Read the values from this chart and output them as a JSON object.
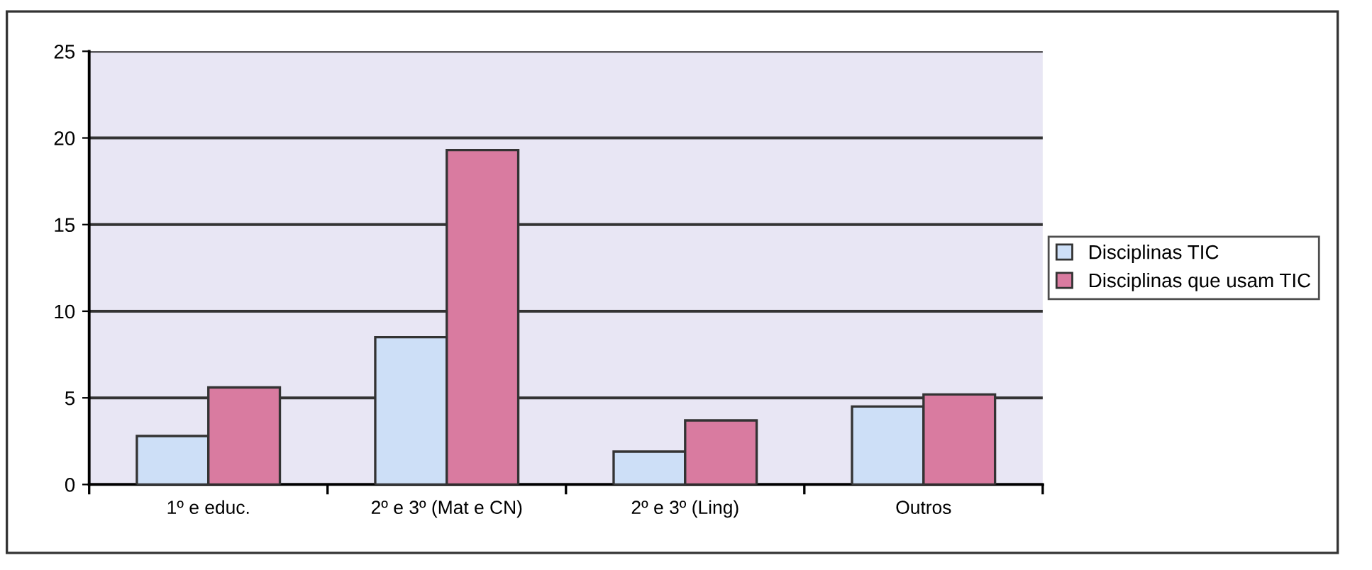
{
  "chart_data": {
    "type": "bar",
    "categories": [
      "1º e educ.",
      "2º e 3º (Mat e CN)",
      "2º e 3º (Ling)",
      "Outros"
    ],
    "series": [
      {
        "name": "Disciplinas TIC",
        "color": "#cddff7",
        "values": [
          2.8,
          8.5,
          1.9,
          4.5
        ]
      },
      {
        "name": "Disciplinas que usam TIC",
        "color": "#d97ba0",
        "values": [
          5.6,
          19.3,
          3.7,
          5.2
        ]
      }
    ],
    "ylim": [
      0,
      25
    ],
    "yticks": [
      0,
      5,
      10,
      15,
      20,
      25
    ],
    "grid": "y",
    "legend": "right"
  }
}
